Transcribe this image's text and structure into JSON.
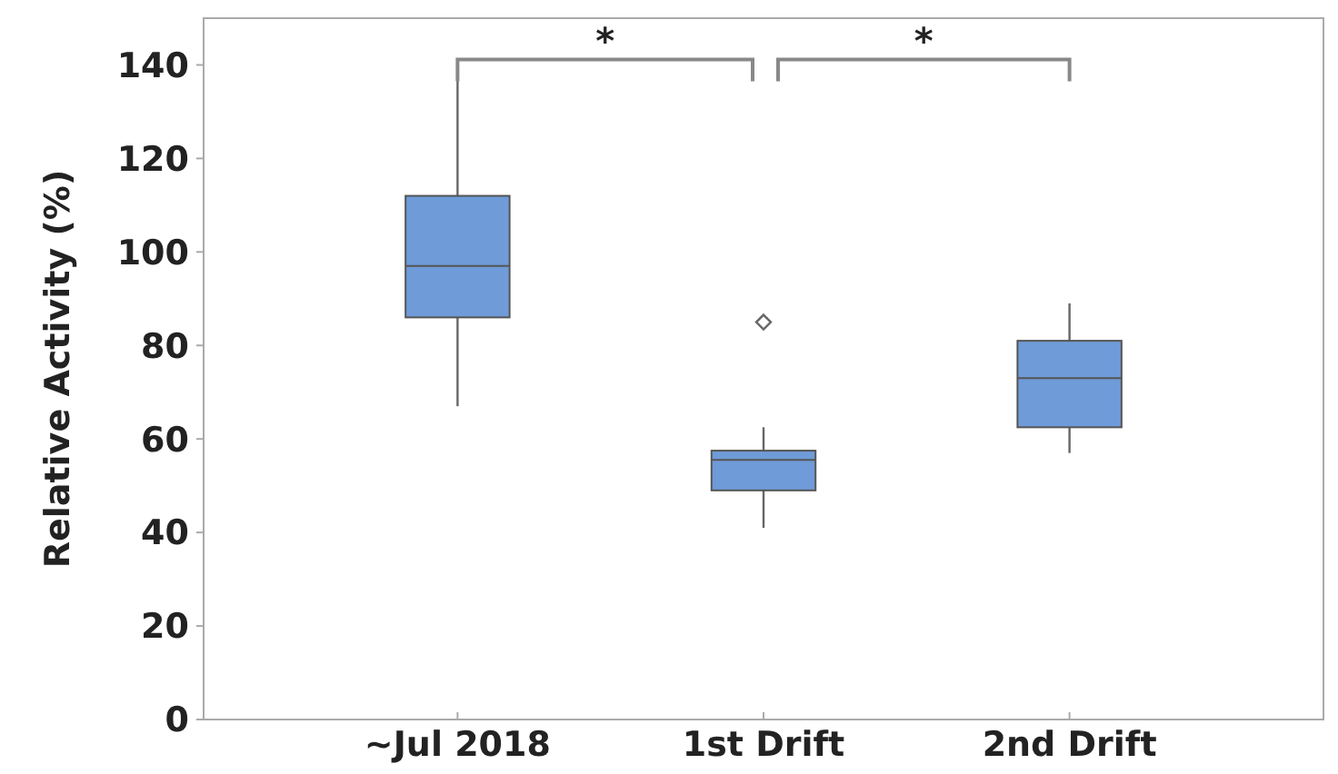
{
  "chart_data": {
    "type": "box",
    "ylabel": "Relative Activity (%)",
    "categories": [
      "~Jul 2018",
      "1st Drift",
      "2nd Drift"
    ],
    "color": "#6f9bd8",
    "boxes": [
      {
        "low": 67,
        "q1": 86,
        "median": 97,
        "q3": 112,
        "high": 137
      },
      {
        "low": 41,
        "q1": 49,
        "median": 55.5,
        "q3": 57.5,
        "high": 62.5,
        "outliers": [
          85
        ]
      },
      {
        "low": 57,
        "q1": 62.5,
        "median": 73,
        "q3": 81,
        "high": 89
      }
    ],
    "ylim": [
      0,
      150
    ],
    "yticks": [
      0,
      20,
      40,
      60,
      80,
      100,
      120,
      140
    ],
    "annotations": [
      "*",
      "*"
    ]
  }
}
